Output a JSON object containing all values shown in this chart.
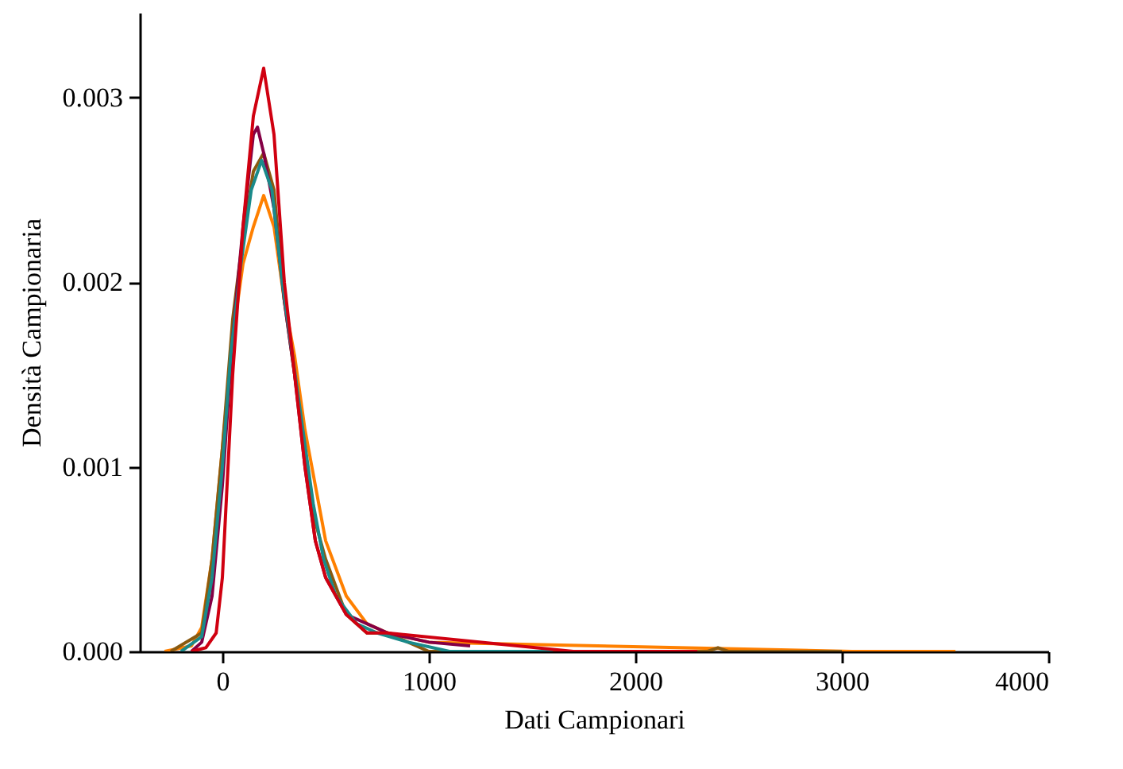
{
  "chart_data": {
    "type": "line",
    "xlabel": "Dati Campionari",
    "ylabel": "Densità Campionaria",
    "xlim": [
      -400,
      4000
    ],
    "ylim": [
      0,
      0.00346
    ],
    "xticks": [
      0,
      1000,
      2000,
      3000,
      4000
    ],
    "yticks": [
      {
        "value": 0,
        "label": "0.000"
      },
      {
        "value": 0.001,
        "label": "0.001"
      },
      {
        "value": 0.002,
        "label": "0.002"
      },
      {
        "value": 0.003,
        "label": "0.003"
      }
    ],
    "grid": false,
    "line_style": "solid",
    "marker": "none",
    "series": [
      {
        "color": "#ff8000",
        "x": [
          -280,
          -150,
          -100,
          -50,
          0,
          50,
          100,
          150,
          200,
          250,
          300,
          350,
          400,
          450,
          500,
          600,
          700,
          800,
          1000,
          3050,
          3550
        ],
        "values": [
          0,
          3e-05,
          0.00013,
          0.0005,
          0.0011,
          0.0017,
          0.0021,
          0.0023,
          0.00247,
          0.0023,
          0.0019,
          0.0016,
          0.0012,
          0.0009,
          0.0006,
          0.0003,
          0.00015,
          0.0001,
          5e-05,
          0,
          0
        ]
      },
      {
        "color": "#8a5a10",
        "x": [
          -250,
          -100,
          -50,
          0,
          50,
          100,
          150,
          200,
          250,
          300,
          350,
          400,
          450,
          500,
          600,
          700,
          800,
          1000,
          2350,
          2400,
          2450,
          3000
        ],
        "values": [
          0,
          0.0001,
          0.0005,
          0.0011,
          0.0018,
          0.00225,
          0.0026,
          0.0027,
          0.0025,
          0.0019,
          0.0015,
          0.0011,
          0.0007,
          0.0005,
          0.0002,
          0.0001,
          0.0001,
          0,
          0,
          2e-05,
          0,
          0
        ]
      },
      {
        "color": "#850045",
        "x": [
          -150,
          -100,
          -50,
          0,
          50,
          100,
          150,
          170,
          200,
          250,
          300,
          350,
          400,
          450,
          500,
          600,
          700,
          800,
          1000,
          1200
        ],
        "values": [
          0,
          5e-05,
          0.0003,
          0.0009,
          0.0017,
          0.0023,
          0.0028,
          0.00284,
          0.0027,
          0.0024,
          0.0019,
          0.0015,
          0.001,
          0.0006,
          0.0004,
          0.0002,
          0.00015,
          0.0001,
          5e-05,
          3e-05
        ]
      },
      {
        "color": "#1a8a8a",
        "x": [
          -200,
          -100,
          -50,
          0,
          40,
          90,
          140,
          190,
          240,
          290,
          340,
          390,
          440,
          490,
          550,
          650,
          750,
          900,
          1100,
          1300,
          1600
        ],
        "values": [
          0,
          8e-05,
          0.0004,
          0.001,
          0.0016,
          0.0021,
          0.0025,
          0.00266,
          0.0025,
          0.002,
          0.0016,
          0.0012,
          0.0008,
          0.0005,
          0.0003,
          0.00015,
          0.0001,
          5e-05,
          0,
          0,
          0
        ]
      },
      {
        "color": "#d00010",
        "x": [
          -150,
          -80,
          -30,
          0,
          50,
          100,
          150,
          200,
          250,
          300,
          350,
          400,
          450,
          500,
          600,
          700,
          800,
          1700,
          2000,
          2300
        ],
        "values": [
          0,
          2e-05,
          0.0001,
          0.0004,
          0.0015,
          0.0023,
          0.0029,
          0.00316,
          0.0028,
          0.002,
          0.0015,
          0.001,
          0.0006,
          0.0004,
          0.0002,
          0.0001,
          0.0001,
          0,
          0,
          0
        ]
      }
    ]
  }
}
